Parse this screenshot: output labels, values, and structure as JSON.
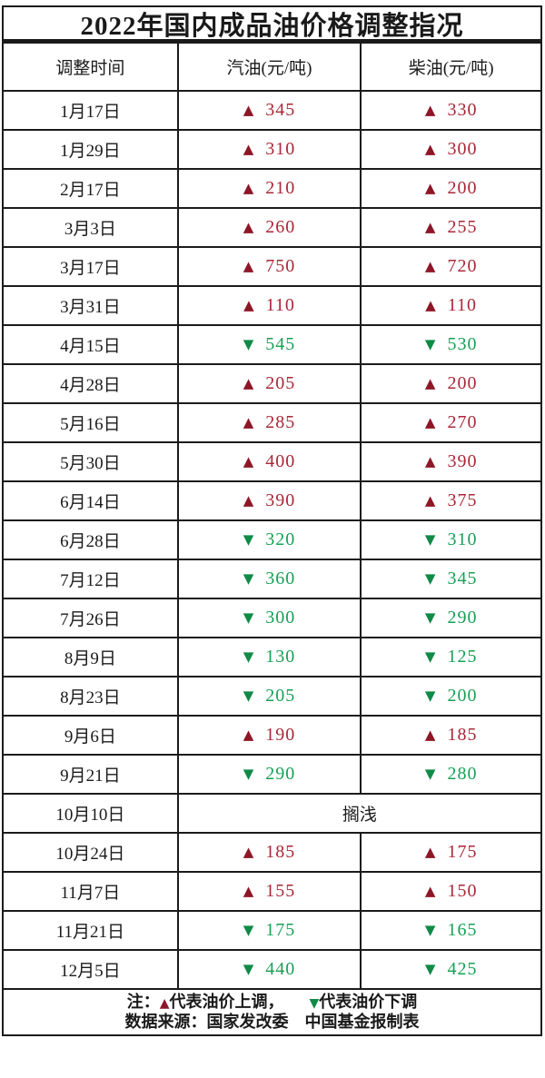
{
  "title": "2022年国内成品油价格调整指况",
  "chart_data": {
    "type": "table",
    "title": "2022年国内成品油价格调整指况",
    "columns": [
      "调整时间",
      "汽油(元/吨)",
      "柴油(元/吨)"
    ],
    "rows": [
      {
        "date": "1月17日",
        "gasoline": {
          "direction": "up",
          "value": "345"
        },
        "diesel": {
          "direction": "up",
          "value": "330"
        }
      },
      {
        "date": "1月29日",
        "gasoline": {
          "direction": "up",
          "value": "310"
        },
        "diesel": {
          "direction": "up",
          "value": "300"
        }
      },
      {
        "date": "2月17日",
        "gasoline": {
          "direction": "up",
          "value": "210"
        },
        "diesel": {
          "direction": "up",
          "value": "200"
        }
      },
      {
        "date": "3月3日",
        "gasoline": {
          "direction": "up",
          "value": "260"
        },
        "diesel": {
          "direction": "up",
          "value": "255"
        }
      },
      {
        "date": "3月17日",
        "gasoline": {
          "direction": "up",
          "value": "750"
        },
        "diesel": {
          "direction": "up",
          "value": "720"
        }
      },
      {
        "date": "3月31日",
        "gasoline": {
          "direction": "up",
          "value": "110"
        },
        "diesel": {
          "direction": "up",
          "value": "110"
        }
      },
      {
        "date": "4月15日",
        "gasoline": {
          "direction": "down",
          "value": "545"
        },
        "diesel": {
          "direction": "down",
          "value": "530"
        }
      },
      {
        "date": "4月28日",
        "gasoline": {
          "direction": "up",
          "value": "205"
        },
        "diesel": {
          "direction": "up",
          "value": "200"
        }
      },
      {
        "date": "5月16日",
        "gasoline": {
          "direction": "up",
          "value": "285"
        },
        "diesel": {
          "direction": "up",
          "value": "270"
        }
      },
      {
        "date": "5月30日",
        "gasoline": {
          "direction": "up",
          "value": "400"
        },
        "diesel": {
          "direction": "up",
          "value": "390"
        }
      },
      {
        "date": "6月14日",
        "gasoline": {
          "direction": "up",
          "value": "390"
        },
        "diesel": {
          "direction": "up",
          "value": "375"
        }
      },
      {
        "date": "6月28日",
        "gasoline": {
          "direction": "down",
          "value": "320"
        },
        "diesel": {
          "direction": "down",
          "value": "310"
        }
      },
      {
        "date": "7月12日",
        "gasoline": {
          "direction": "down",
          "value": "360"
        },
        "diesel": {
          "direction": "down",
          "value": "345"
        }
      },
      {
        "date": "7月26日",
        "gasoline": {
          "direction": "down",
          "value": "300"
        },
        "diesel": {
          "direction": "down",
          "value": "290"
        }
      },
      {
        "date": "8月9日",
        "gasoline": {
          "direction": "down",
          "value": "130"
        },
        "diesel": {
          "direction": "down",
          "value": "125"
        }
      },
      {
        "date": "8月23日",
        "gasoline": {
          "direction": "down",
          "value": "205"
        },
        "diesel": {
          "direction": "down",
          "value": "200"
        }
      },
      {
        "date": "9月6日",
        "gasoline": {
          "direction": "up",
          "value": "190"
        },
        "diesel": {
          "direction": "up",
          "value": "185"
        }
      },
      {
        "date": "9月21日",
        "gasoline": {
          "direction": "down",
          "value": "290"
        },
        "diesel": {
          "direction": "down",
          "value": "280"
        }
      },
      {
        "date": "10月10日",
        "merged": "搁浅"
      },
      {
        "date": "10月24日",
        "gasoline": {
          "direction": "up",
          "value": "185"
        },
        "diesel": {
          "direction": "up",
          "value": "175"
        }
      },
      {
        "date": "11月7日",
        "gasoline": {
          "direction": "up",
          "value": "155"
        },
        "diesel": {
          "direction": "up",
          "value": "150"
        }
      },
      {
        "date": "11月21日",
        "gasoline": {
          "direction": "down",
          "value": "175"
        },
        "diesel": {
          "direction": "down",
          "value": "165"
        }
      },
      {
        "date": "12月5日",
        "gasoline": {
          "direction": "down",
          "value": "440"
        },
        "diesel": {
          "direction": "down",
          "value": "425"
        }
      }
    ]
  },
  "symbols": {
    "up": "▲",
    "down": "▼"
  },
  "colors": {
    "up_arrow": "#8e1627",
    "up_value": "#a92737",
    "down_arrow": "#108a47",
    "down_value": "#17a055",
    "border": "#1b1b1b"
  },
  "legend": {
    "prefix": "注：",
    "up_symbol": "▲",
    "up_label": "代表油价上调，",
    "down_symbol": "▼",
    "down_label": "代表油价下调"
  },
  "source_line": "数据来源：国家发改委　中国基金报制表"
}
